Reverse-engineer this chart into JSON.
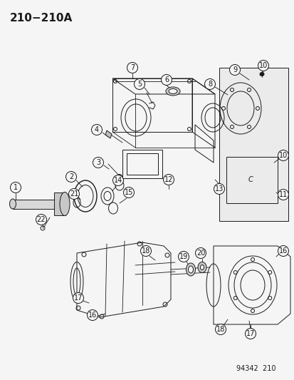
{
  "title": "210−210A",
  "footer": "94342  210",
  "bg_color": "#f5f5f5",
  "line_color": "#1a1a1a",
  "title_fontsize": 11,
  "footer_fontsize": 7,
  "label_fontsize": 7,
  "fig_width": 4.14,
  "fig_height": 5.33,
  "dpi": 100
}
